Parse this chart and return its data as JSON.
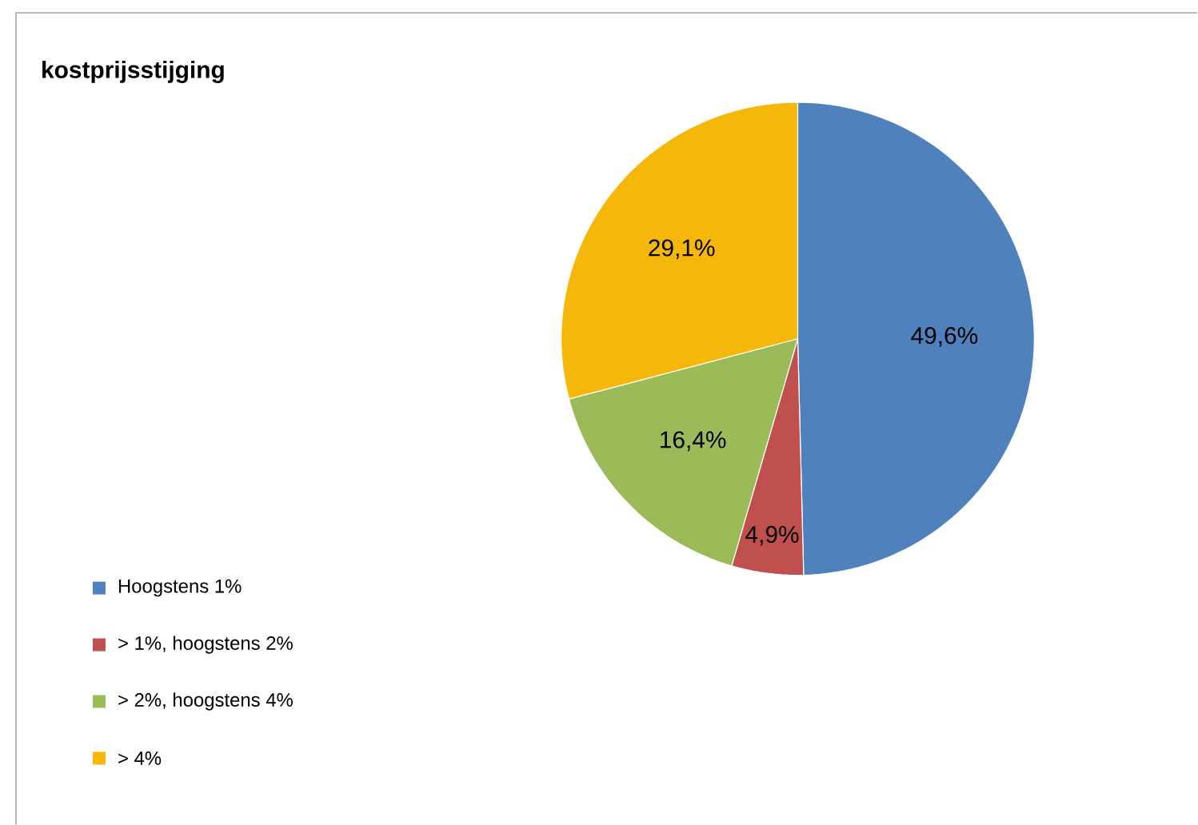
{
  "chart_data": {
    "type": "pie",
    "title": "kostprijsstijging",
    "categories": [
      "Hoogstens 1%",
      "> 1%, hoogstens 2%",
      "> 2%, hoogstens 4%",
      "> 4%"
    ],
    "values": [
      49.6,
      4.9,
      16.4,
      29.1
    ],
    "colors": [
      "#4f81bd",
      "#c0504d",
      "#9bbb59",
      "#f5b80a"
    ],
    "value_labels": [
      "49,6%",
      "4,9%",
      "16,4%",
      "29,1%"
    ],
    "legend": "bottom left"
  }
}
